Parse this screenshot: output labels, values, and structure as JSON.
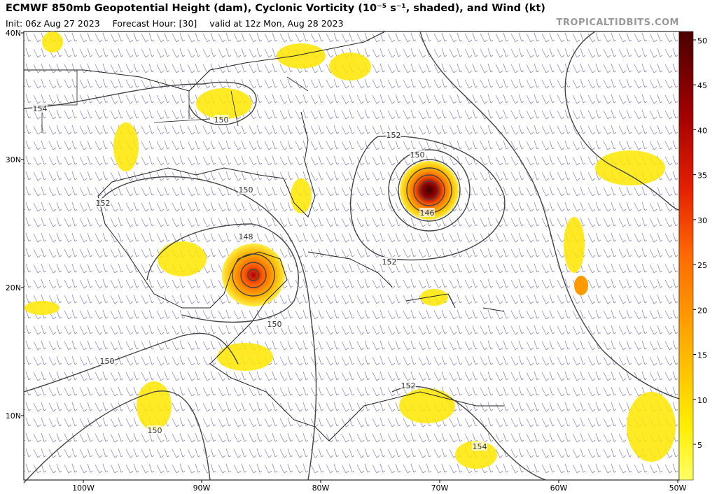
{
  "header": {
    "title": "ECMWF 850mb Geopotential Height (dam), Cyclonic Vorticity (10⁻⁵ s⁻¹, shaded), and Wind (kt)",
    "init": "Init: 06z Aug 27 2023",
    "forecast_hour": "Forecast Hour: [30]",
    "valid": "valid at 12z Mon, Aug 28 2023",
    "watermark": "TROPICALTIDBITS.COM"
  },
  "axes": {
    "lat": [
      "40N",
      "30N",
      "20N",
      "10N"
    ],
    "lon": [
      "100W",
      "90W",
      "80W",
      "70W",
      "60W",
      "50W"
    ]
  },
  "colorbar": {
    "ticks": [
      5,
      10,
      15,
      20,
      25,
      30,
      35,
      40,
      45,
      50
    ]
  },
  "contour_labels": [
    "154",
    "150",
    "152",
    "150",
    "150",
    "152",
    "148",
    "146",
    "152",
    "150",
    "150",
    "152",
    "150",
    "154"
  ]
}
